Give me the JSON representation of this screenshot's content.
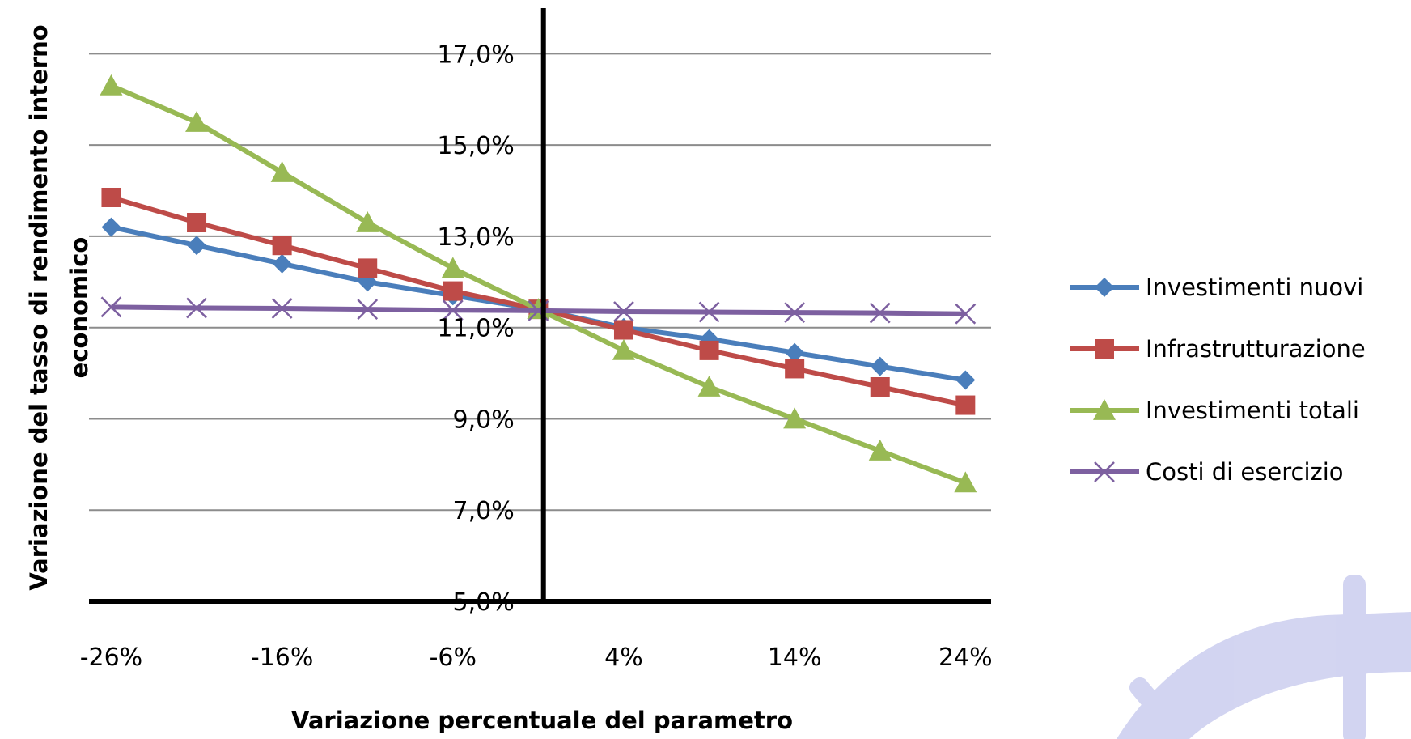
{
  "chart_data": {
    "type": "line",
    "title": "",
    "xlabel": "Variazione percentuale del parametro",
    "ylabel": "Variazione del tasso di rendimento interno economico",
    "ylabel_lines": [
      "Variazione del tasso di rendimento interno",
      "economico"
    ],
    "x": [
      -26,
      -21,
      -16,
      -11,
      -6,
      -1,
      4,
      9,
      14,
      19,
      24
    ],
    "xticks": [
      "-26%",
      "-16%",
      "-6%",
      "4%",
      "14%",
      "24%"
    ],
    "xtick_values": [
      -26,
      -16,
      -6,
      4,
      14,
      24
    ],
    "xlim": [
      -27.3,
      25.5
    ],
    "ylim": [
      5.0,
      18.0
    ],
    "yticks": [
      "5,0%",
      "7,0%",
      "9,0%",
      "11,0%",
      "13,0%",
      "15,0%",
      "17,0%"
    ],
    "ytick_values": [
      5,
      7,
      9,
      11,
      13,
      15,
      17
    ],
    "y_axis_at_x": -0.7,
    "grid": true,
    "legend_position": "right",
    "series": [
      {
        "name": "Investimenti nuovi",
        "color": "#4A7EBB",
        "marker": "diamond",
        "values": [
          13.2,
          12.8,
          12.4,
          12.0,
          11.7,
          11.4,
          11.0,
          10.75,
          10.45,
          10.15,
          9.85
        ]
      },
      {
        "name": "Infrastrutturazione",
        "color": "#BE4B48",
        "marker": "square",
        "values": [
          13.85,
          13.3,
          12.8,
          12.3,
          11.8,
          11.4,
          10.95,
          10.5,
          10.1,
          9.7,
          9.3
        ]
      },
      {
        "name": "Investimenti totali",
        "color": "#98B954",
        "marker": "triangle",
        "values": [
          16.3,
          15.5,
          14.4,
          13.3,
          12.3,
          11.4,
          10.5,
          9.7,
          9.0,
          8.3,
          7.6
        ]
      },
      {
        "name": "Costi di esercizio",
        "color": "#7D60A0",
        "marker": "x",
        "values": [
          11.45,
          11.43,
          11.42,
          11.4,
          11.38,
          11.37,
          11.35,
          11.34,
          11.33,
          11.32,
          11.3
        ]
      }
    ]
  }
}
